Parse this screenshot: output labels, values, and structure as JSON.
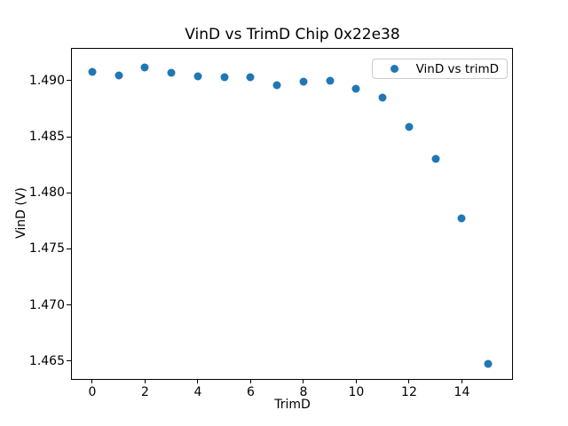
{
  "figure": {
    "background": "#ffffff",
    "text_color": "#000000",
    "spine_color": "#000000"
  },
  "chart_data": {
    "type": "scatter",
    "title": "VinD vs TrimD Chip 0x22e38",
    "xlabel": "TrimD",
    "ylabel": "VinD (V)",
    "xlim": [
      -0.77,
      15.9
    ],
    "ylim": [
      1.46339,
      1.49284
    ],
    "xticks": [
      0,
      2,
      4,
      6,
      8,
      10,
      12,
      14
    ],
    "yticks": [
      1.465,
      1.47,
      1.475,
      1.48,
      1.485,
      1.49
    ],
    "ytick_decimals": 3,
    "grid": false,
    "legend": {
      "position": "upper right",
      "label": "VinD vs trimD",
      "marker": "circle-icon"
    },
    "series": [
      {
        "name": "VinD vs trimD",
        "color": "#1f77b4",
        "marker_size_px": 9,
        "x": [
          0,
          1,
          2,
          3,
          4,
          5,
          6,
          7,
          8,
          9,
          10,
          11,
          12,
          13,
          14,
          15
        ],
        "y": [
          1.4908,
          1.4905,
          1.4912,
          1.4907,
          1.4904,
          1.4903,
          1.4903,
          1.4896,
          1.4899,
          1.49,
          1.4893,
          1.4885,
          1.4859,
          1.483,
          1.4777,
          1.4647
        ]
      }
    ]
  }
}
